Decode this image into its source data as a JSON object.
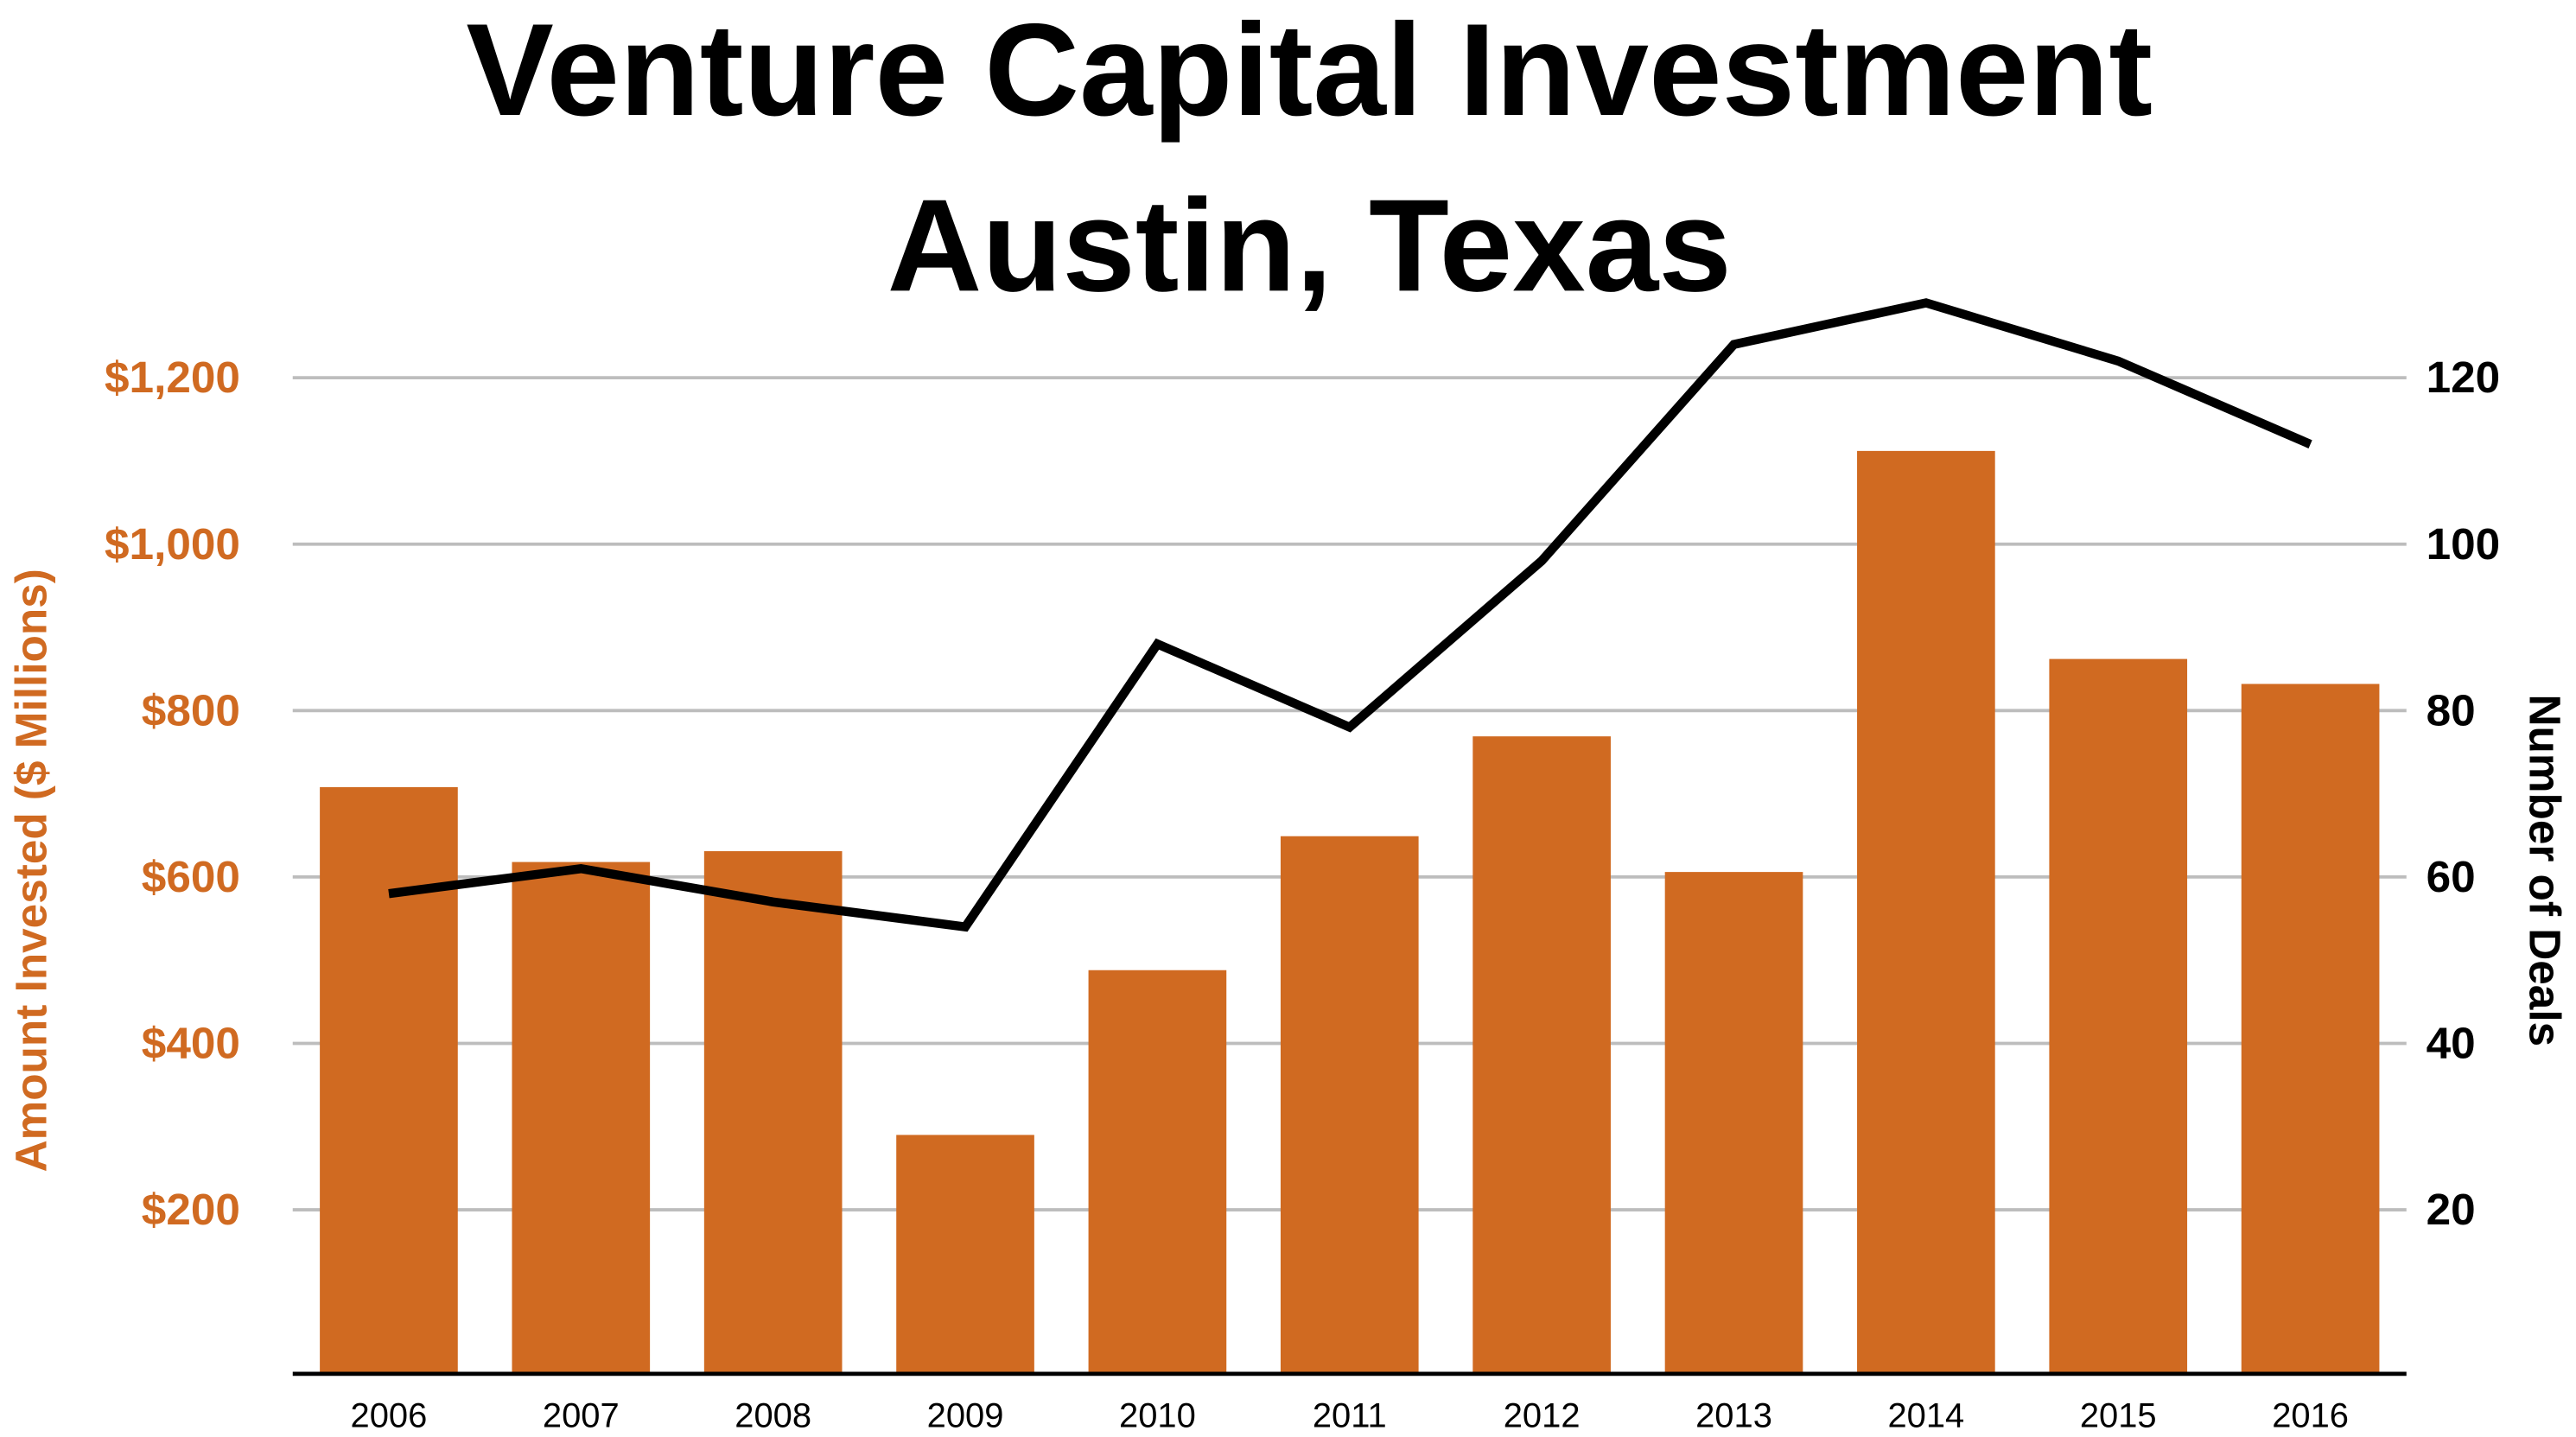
{
  "chart_data": {
    "type": "bar+line",
    "title": "Venture Capital Investment",
    "subtitle": "Austin, Texas",
    "categories": [
      "2006",
      "2007",
      "2008",
      "2009",
      "2010",
      "2011",
      "2012",
      "2013",
      "2014",
      "2015",
      "2016"
    ],
    "series": [
      {
        "axis": "left",
        "type": "bar",
        "values": [
          708,
          618,
          631,
          290,
          488,
          649,
          769,
          606,
          1112,
          862,
          832
        ]
      },
      {
        "axis": "right",
        "type": "line",
        "values": [
          58,
          61,
          57,
          54,
          88,
          78,
          98,
          124,
          129,
          122,
          112
        ]
      }
    ],
    "ylabel": "Amount Invested ($ Millions)",
    "ylim": [
      0,
      1200
    ],
    "yticks": [
      "$200",
      "$400",
      "$600",
      "$800",
      "$1,000",
      "$1,200"
    ],
    "ytick_values": [
      200,
      400,
      600,
      800,
      1000,
      1200
    ],
    "y2label": "Number of Deals",
    "y2lim": [
      0,
      120
    ],
    "y2ticks": [
      "20",
      "40",
      "60",
      "80",
      "100",
      "120"
    ],
    "y2tick_values": [
      20,
      40,
      60,
      80,
      100,
      120
    ],
    "grid": true,
    "colors": {
      "bar": "#d06a21",
      "line": "#000000",
      "left_axis": "#d06a21",
      "grid": "#bdbdbd"
    }
  }
}
